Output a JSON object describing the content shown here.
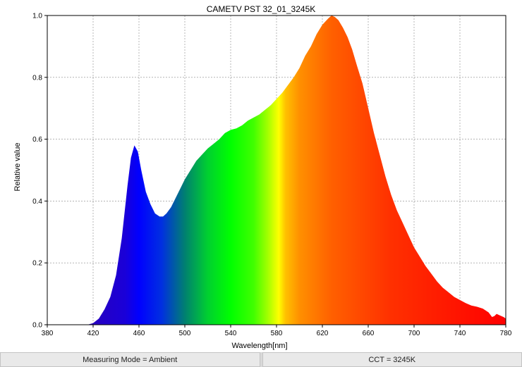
{
  "chart_data": {
    "type": "area",
    "title": "CAMETV PST 32_01_3245K",
    "xlabel": "Wavelength[nm]",
    "ylabel": "Relative value",
    "xlim": [
      380,
      780
    ],
    "ylim": [
      0,
      1.0
    ],
    "xticks": [
      380,
      420,
      460,
      500,
      540,
      580,
      620,
      660,
      700,
      740,
      780
    ],
    "yticks": [
      0.0,
      0.2,
      0.4,
      0.6,
      0.8,
      1.0
    ],
    "xtick_labels": [
      "380",
      "420",
      "460",
      "500",
      "540",
      "580",
      "620",
      "660",
      "700",
      "740",
      "780"
    ],
    "ytick_labels": [
      "0.0",
      "0.2",
      "0.4",
      "0.6",
      "0.8",
      "1.0"
    ],
    "grid": true,
    "fill": "visible-spectrum colors by wavelength",
    "x": [
      380,
      400,
      415,
      420,
      425,
      430,
      435,
      440,
      445,
      450,
      453,
      456,
      459,
      462,
      466,
      470,
      474,
      478,
      481,
      484,
      488,
      492,
      496,
      500,
      505,
      510,
      515,
      520,
      525,
      530,
      535,
      540,
      545,
      550,
      555,
      560,
      565,
      570,
      575,
      580,
      585,
      590,
      595,
      600,
      605,
      610,
      615,
      620,
      625,
      628,
      631,
      634,
      638,
      642,
      646,
      650,
      655,
      660,
      665,
      670,
      675,
      680,
      685,
      690,
      695,
      700,
      705,
      710,
      715,
      720,
      725,
      730,
      735,
      740,
      745,
      750,
      755,
      760,
      765,
      768,
      770,
      772,
      775,
      778,
      780
    ],
    "y": [
      0,
      0,
      0,
      0.005,
      0.02,
      0.05,
      0.09,
      0.16,
      0.28,
      0.45,
      0.54,
      0.58,
      0.56,
      0.5,
      0.43,
      0.39,
      0.36,
      0.35,
      0.35,
      0.36,
      0.38,
      0.41,
      0.44,
      0.47,
      0.5,
      0.53,
      0.55,
      0.57,
      0.585,
      0.6,
      0.62,
      0.63,
      0.635,
      0.645,
      0.66,
      0.67,
      0.68,
      0.695,
      0.71,
      0.73,
      0.75,
      0.775,
      0.8,
      0.83,
      0.87,
      0.9,
      0.94,
      0.97,
      0.99,
      1.0,
      0.995,
      0.985,
      0.96,
      0.93,
      0.89,
      0.84,
      0.78,
      0.7,
      0.62,
      0.55,
      0.48,
      0.42,
      0.37,
      0.33,
      0.29,
      0.25,
      0.22,
      0.19,
      0.165,
      0.14,
      0.12,
      0.105,
      0.09,
      0.08,
      0.07,
      0.062,
      0.058,
      0.052,
      0.04,
      0.025,
      0.028,
      0.035,
      0.03,
      0.025,
      0.02
    ]
  },
  "status_bar": {
    "measuring_mode": "Measuring Mode = Ambient",
    "cct": "CCT = 3245K"
  }
}
